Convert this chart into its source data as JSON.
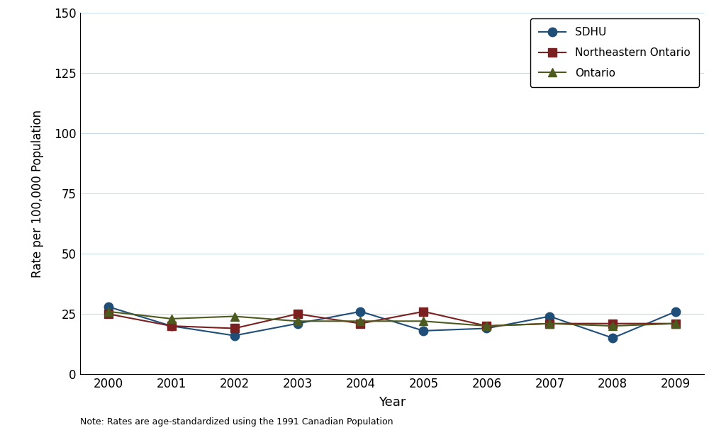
{
  "years": [
    2000,
    2001,
    2002,
    2003,
    2004,
    2005,
    2006,
    2007,
    2008,
    2009
  ],
  "sdhu": [
    28,
    20,
    16,
    21,
    26,
    18,
    19,
    24,
    15,
    26
  ],
  "northeastern_ontario": [
    25,
    20,
    19,
    25,
    21,
    26,
    20,
    21,
    21,
    21
  ],
  "ontario": [
    26,
    23,
    24,
    22,
    22,
    22,
    20,
    21,
    20,
    21
  ],
  "sdhu_color": "#1f4e79",
  "ne_ontario_color": "#7b2020",
  "ontario_color": "#4d5a1e",
  "ylabel": "Rate per 100,000 Population",
  "xlabel": "Year",
  "ylim": [
    0,
    150
  ],
  "yticks": [
    0,
    25,
    50,
    75,
    100,
    125,
    150
  ],
  "note": "Note: Rates are age-standardized using the 1991 Canadian Population",
  "legend_labels": [
    "SDHU",
    "Northeastern Ontario",
    "Ontario"
  ],
  "background_color": "#ffffff",
  "grid_color": "#c8dce8"
}
